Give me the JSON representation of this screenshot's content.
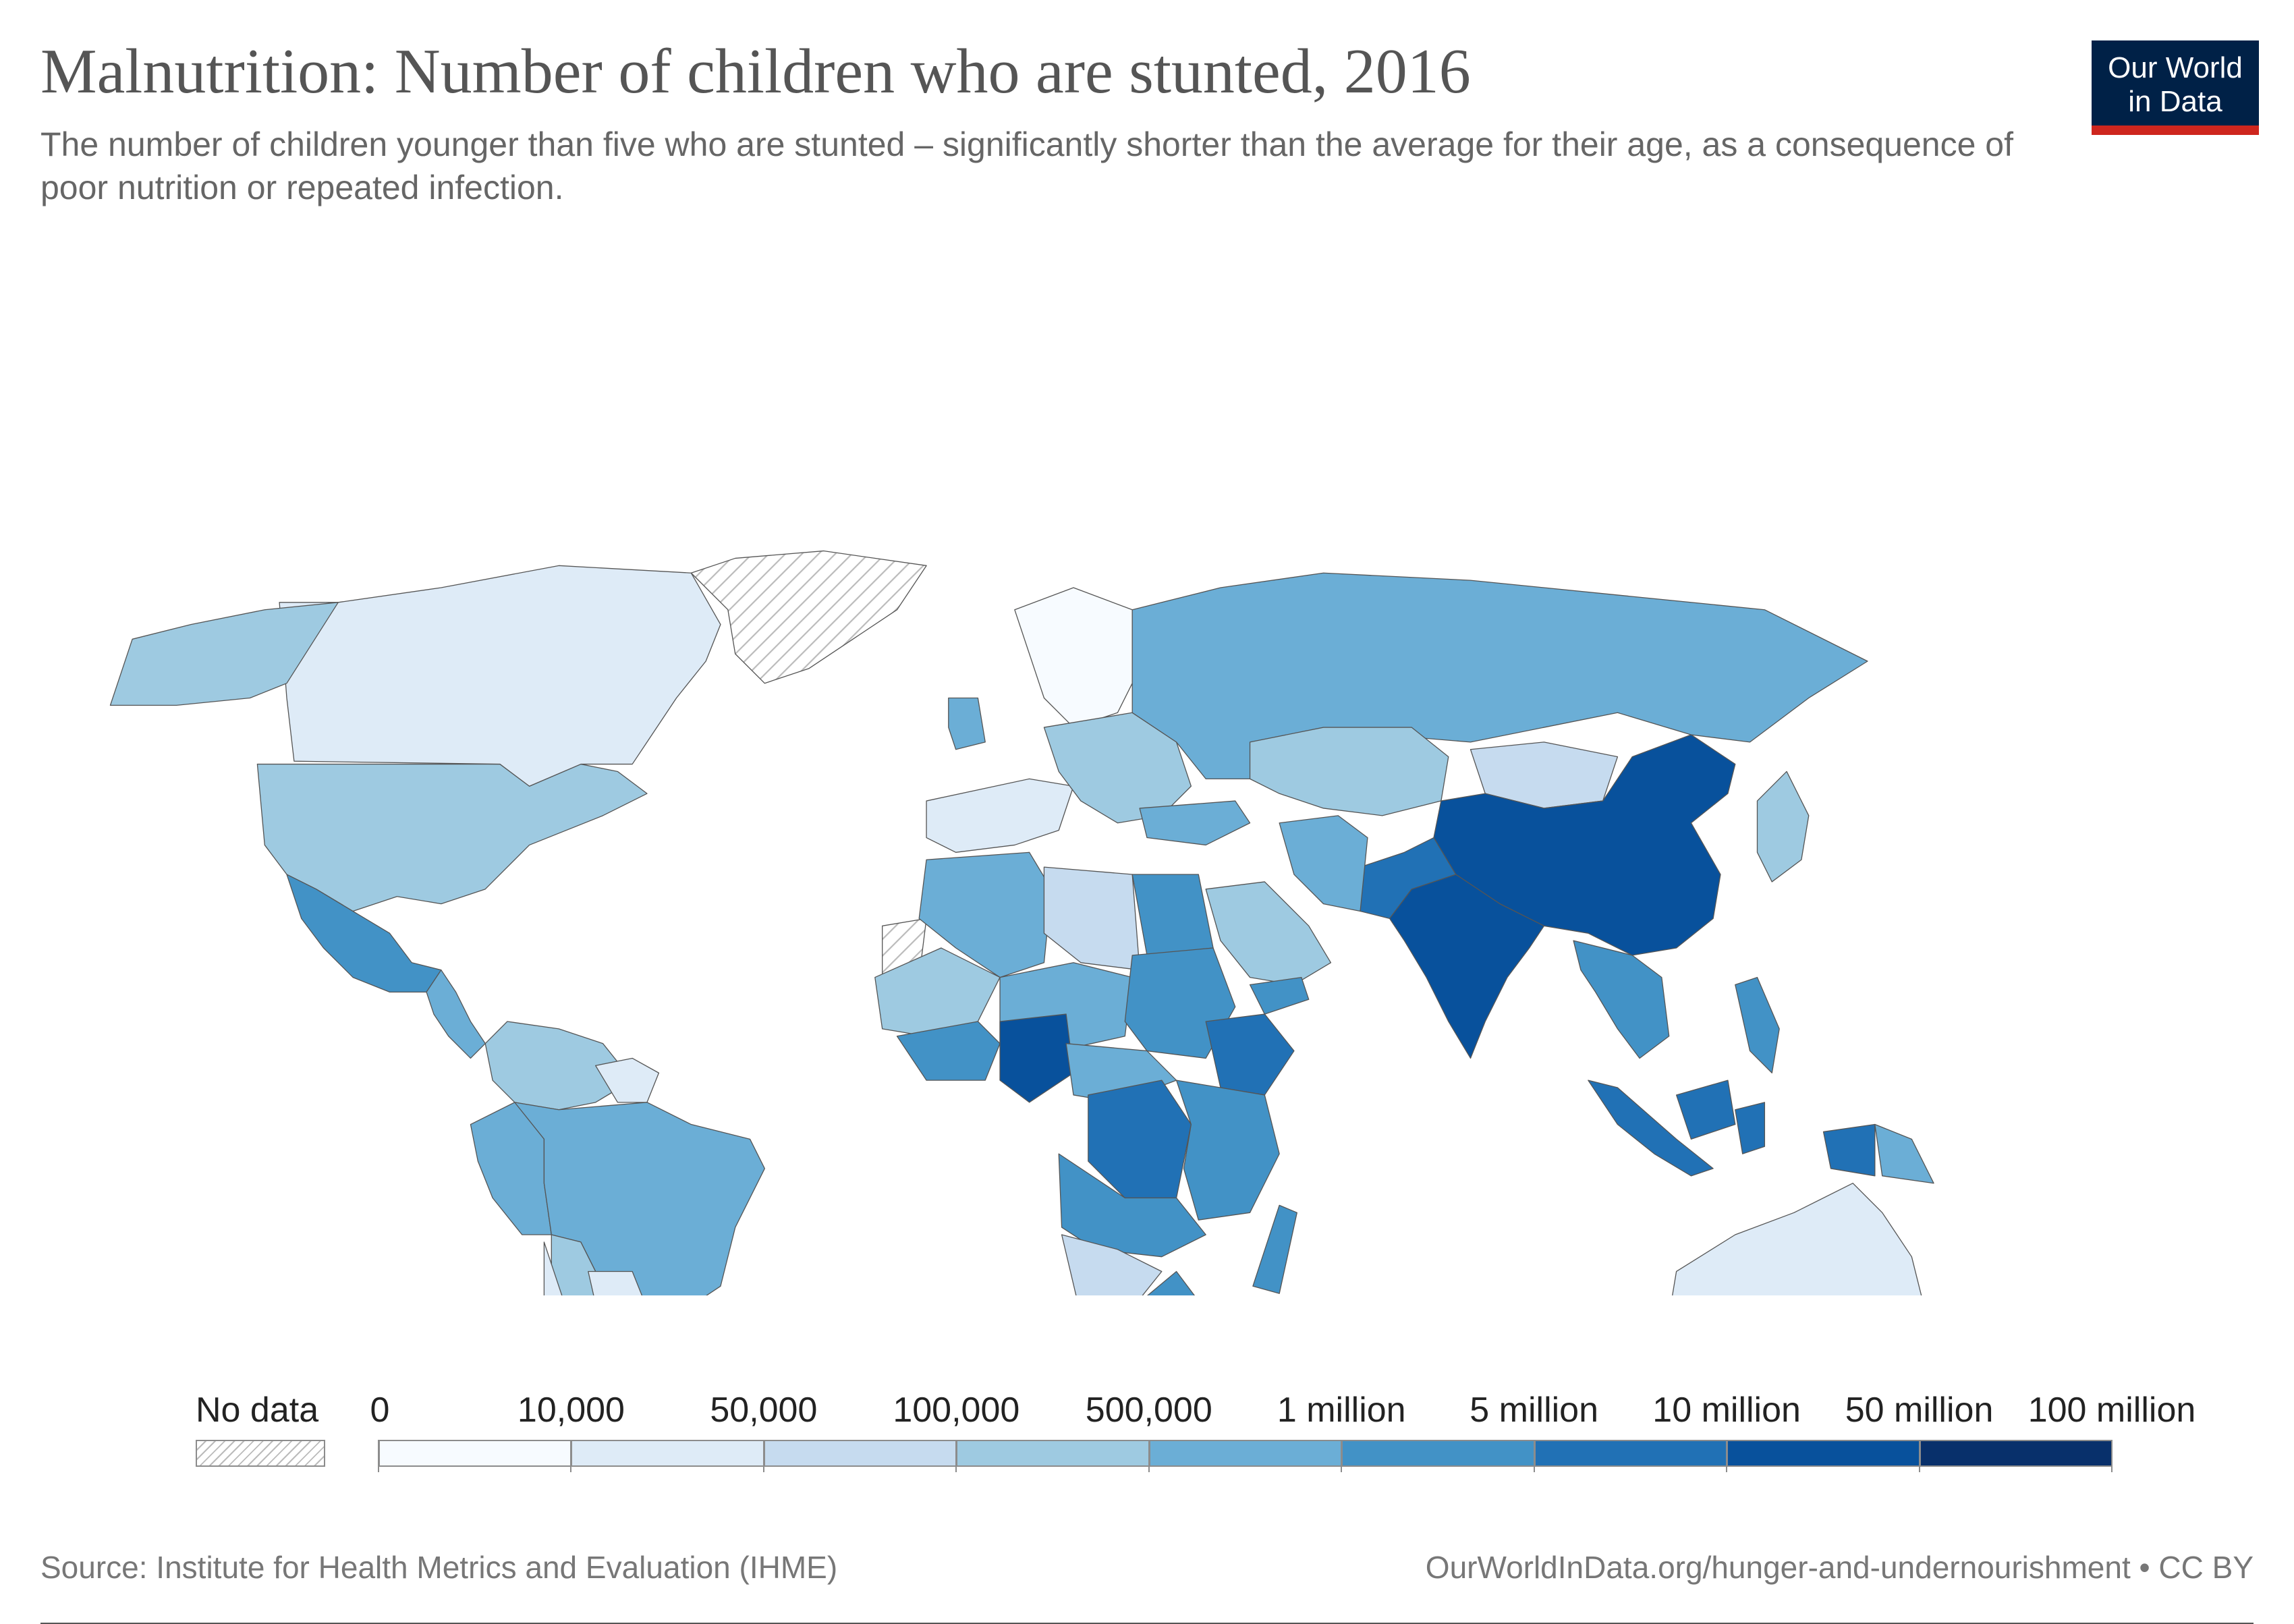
{
  "header": {
    "title": "Malnutrition: Number of children who are stunted, 2016",
    "subtitle": "The number of children younger than five who are stunted – significantly shorter than the average for their age, as a consequence of poor nutrition or repeated infection."
  },
  "logo": {
    "line1": "Our World",
    "line2": "in Data",
    "bg_color": "#002147",
    "accent_color": "#ce261e"
  },
  "legend": {
    "no_data_label": "No data",
    "bins": [
      "0",
      "10,000",
      "50,000",
      "100,000",
      "500,000",
      "1 million",
      "5 million",
      "10 million",
      "50 million",
      "100 million"
    ],
    "colors": [
      "#f7fbff",
      "#deebf7",
      "#c6dbef",
      "#9ecae1",
      "#6baed6",
      "#4292c6",
      "#2171b5",
      "#08519c",
      "#08306b"
    ]
  },
  "chart_data": {
    "type": "choropleth",
    "year": 2016,
    "scale_bins": [
      0,
      10000,
      50000,
      100000,
      500000,
      1000000,
      5000000,
      10000000,
      50000000,
      100000000
    ],
    "regions": [
      {
        "name": "United States",
        "bin": 3
      },
      {
        "name": "Canada",
        "bin": 1
      },
      {
        "name": "Alaska",
        "bin": 3
      },
      {
        "name": "Greenland",
        "bin": -1
      },
      {
        "name": "Mexico",
        "bin": 5
      },
      {
        "name": "Central America",
        "bin": 4
      },
      {
        "name": "Colombia/Venezuela",
        "bin": 3
      },
      {
        "name": "Guianas",
        "bin": 1
      },
      {
        "name": "Peru",
        "bin": 4
      },
      {
        "name": "Brazil",
        "bin": 4
      },
      {
        "name": "Bolivia",
        "bin": 3
      },
      {
        "name": "Paraguay",
        "bin": 1
      },
      {
        "name": "Chile",
        "bin": 1
      },
      {
        "name": "Argentina",
        "bin": 3
      },
      {
        "name": "Western Europe",
        "bin": 1
      },
      {
        "name": "Scandinavia",
        "bin": 0
      },
      {
        "name": "United Kingdom",
        "bin": 4
      },
      {
        "name": "Eastern Europe",
        "bin": 3
      },
      {
        "name": "Russia",
        "bin": 4
      },
      {
        "name": "Kazakhstan",
        "bin": 3
      },
      {
        "name": "Mongolia",
        "bin": 2
      },
      {
        "name": "China",
        "bin": 7
      },
      {
        "name": "India",
        "bin": 7
      },
      {
        "name": "Pakistan",
        "bin": 6
      },
      {
        "name": "Iran",
        "bin": 4
      },
      {
        "name": "Saudi Arabia",
        "bin": 3
      },
      {
        "name": "Yemen",
        "bin": 5
      },
      {
        "name": "Turkey",
        "bin": 4
      },
      {
        "name": "Japan",
        "bin": 3
      },
      {
        "name": "Southeast Asia",
        "bin": 5
      },
      {
        "name": "Indonesia",
        "bin": 6
      },
      {
        "name": "Philippines",
        "bin": 5
      },
      {
        "name": "Papua New Guinea",
        "bin": 4
      },
      {
        "name": "Australia",
        "bin": 1
      },
      {
        "name": "New Zealand",
        "bin": 1
      },
      {
        "name": "Western Sahara",
        "bin": -1
      },
      {
        "name": "Morocco/Algeria",
        "bin": 4
      },
      {
        "name": "Libya",
        "bin": 2
      },
      {
        "name": "Egypt",
        "bin": 5
      },
      {
        "name": "Sahel West",
        "bin": 3
      },
      {
        "name": "Niger/Chad",
        "bin": 4
      },
      {
        "name": "Sudan",
        "bin": 5
      },
      {
        "name": "West Africa coast",
        "bin": 5
      },
      {
        "name": "Nigeria",
        "bin": 7
      },
      {
        "name": "Ethiopia",
        "bin": 6
      },
      {
        "name": "Central Africa",
        "bin": 4
      },
      {
        "name": "DR Congo",
        "bin": 6
      },
      {
        "name": "East Africa",
        "bin": 5
      },
      {
        "name": "Angola/Zambia",
        "bin": 5
      },
      {
        "name": "Namibia/Botswana",
        "bin": 2
      },
      {
        "name": "South Africa",
        "bin": 5
      },
      {
        "name": "Madagascar",
        "bin": 5
      }
    ]
  },
  "footer": {
    "source": "Source: Institute for Health Metrics and Evaluation (IHME)",
    "url": "OurWorldInData.org/hunger-and-undernourishment • CC BY"
  }
}
